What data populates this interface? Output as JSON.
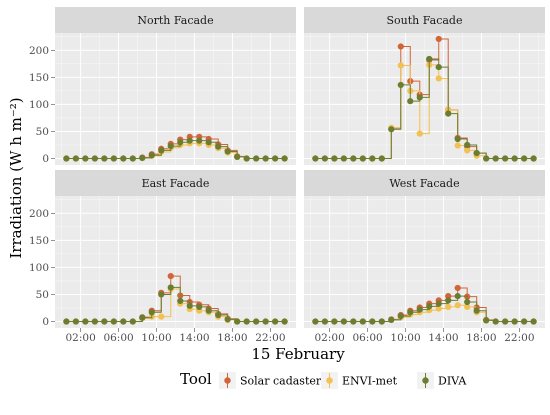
{
  "chart_data": {
    "type": "line",
    "xlabel": "15 February",
    "ylabel": "Irradiation (W h m⁻²)",
    "ylim": [
      -12,
      232
    ],
    "yticks": [
      0,
      50,
      100,
      150,
      200
    ],
    "xticks": [
      "02:00",
      "06:00",
      "10:00",
      "14:00",
      "18:00",
      "22:00"
    ],
    "hours": [
      0.5,
      1.5,
      2.5,
      3.5,
      4.5,
      5.5,
      6.5,
      7.5,
      8.5,
      9.5,
      10.5,
      11.5,
      12.5,
      13.5,
      14.5,
      15.5,
      16.5,
      17.5,
      18.5,
      19.5,
      20.5,
      21.5,
      22.5,
      23.5
    ],
    "legend": {
      "title": "Tool",
      "position": "bottom"
    },
    "colors": {
      "Solar cadaster": "#d2643a",
      "ENVI-met": "#f2c053",
      "DIVA": "#6a7d31"
    },
    "facets": [
      {
        "title": "North Facade",
        "series": [
          {
            "name": "Solar cadaster",
            "values": [
              0,
              0,
              0,
              0,
              0,
              0,
              0,
              0,
              2,
              8,
              18,
              27,
              35,
              40,
              40,
              36,
              26,
              15,
              4,
              0,
              0,
              0,
              0,
              0
            ]
          },
          {
            "name": "ENVI-met",
            "values": [
              0,
              0,
              0,
              0,
              0,
              0,
              0,
              0,
              1,
              5,
              12,
              20,
              25,
              28,
              28,
              25,
              19,
              11,
              3,
              0,
              0,
              0,
              0,
              0
            ]
          },
          {
            "name": "DIVA",
            "values": [
              0,
              0,
              0,
              0,
              0,
              0,
              0,
              0,
              1,
              6,
              15,
              23,
              30,
              33,
              33,
              30,
              22,
              13,
              3,
              0,
              0,
              0,
              0,
              0
            ]
          }
        ]
      },
      {
        "title": "South Facade",
        "series": [
          {
            "name": "Solar cadaster",
            "values": [
              0,
              0,
              0,
              0,
              0,
              0,
              0,
              0,
              55,
              207,
              143,
              118,
              182,
              221,
              90,
              38,
              22,
              10,
              0,
              0,
              0,
              0,
              0,
              0
            ]
          },
          {
            "name": "ENVI-met",
            "values": [
              0,
              0,
              0,
              0,
              0,
              0,
              0,
              0,
              57,
              172,
              125,
              46,
              173,
              148,
              90,
              24,
              15,
              5,
              0,
              0,
              0,
              0,
              0,
              0
            ]
          },
          {
            "name": "DIVA",
            "values": [
              0,
              0,
              0,
              0,
              0,
              0,
              0,
              0,
              54,
              136,
              106,
              113,
              184,
              169,
              83,
              36,
              25,
              10,
              0,
              0,
              0,
              0,
              0,
              0
            ]
          }
        ]
      },
      {
        "title": "East Facade",
        "series": [
          {
            "name": "Solar cadaster",
            "values": [
              0,
              0,
              0,
              0,
              0,
              0,
              0,
              0,
              8,
              20,
              53,
              84,
              48,
              36,
              31,
              24,
              14,
              5,
              0,
              0,
              0,
              0,
              0,
              0
            ]
          },
          {
            "name": "ENVI-met",
            "values": [
              0,
              0,
              0,
              0,
              0,
              0,
              0,
              0,
              6,
              9,
              9,
              60,
              33,
              23,
              20,
              17,
              9,
              3,
              0,
              0,
              0,
              0,
              0,
              0
            ]
          },
          {
            "name": "DIVA",
            "values": [
              0,
              0,
              0,
              0,
              0,
              0,
              0,
              0,
              7,
              17,
              50,
              63,
              38,
              29,
              27,
              20,
              12,
              4,
              0,
              0,
              0,
              0,
              0,
              0
            ]
          }
        ]
      },
      {
        "title": "West Facade",
        "series": [
          {
            "name": "Solar cadaster",
            "values": [
              0,
              0,
              0,
              0,
              0,
              0,
              0,
              0,
              4,
              12,
              20,
              26,
              33,
              39,
              47,
              62,
              46,
              26,
              3,
              0,
              0,
              0,
              0,
              0
            ]
          },
          {
            "name": "ENVI-met",
            "values": [
              0,
              0,
              0,
              0,
              0,
              0,
              0,
              0,
              3,
              8,
              13,
              17,
              21,
              24,
              27,
              30,
              27,
              17,
              2,
              0,
              0,
              0,
              0,
              0
            ]
          },
          {
            "name": "DIVA",
            "values": [
              0,
              0,
              0,
              0,
              0,
              0,
              0,
              0,
              3,
              10,
              17,
              22,
              28,
              33,
              39,
              47,
              36,
              20,
              2,
              0,
              0,
              0,
              0,
              0
            ]
          }
        ]
      }
    ]
  }
}
